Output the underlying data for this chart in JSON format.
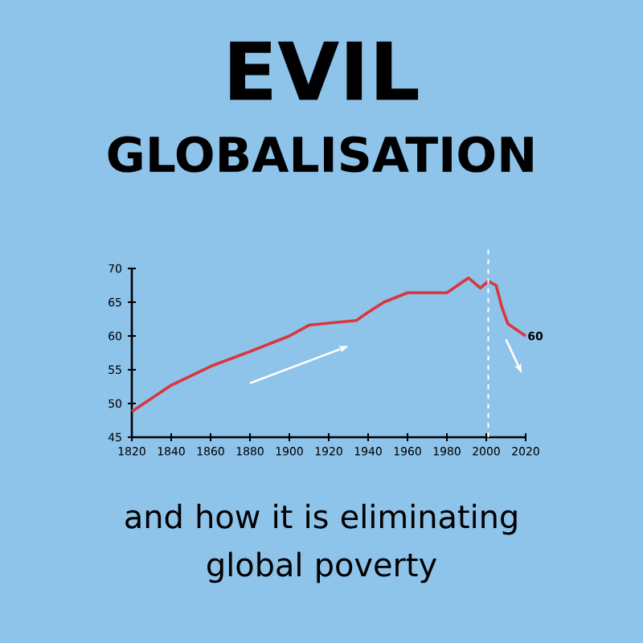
{
  "chart_data": {
    "type": "line",
    "title": "EVIL",
    "subtitle": "GLOBALISATION",
    "annotations": [
      {
        "text": "60",
        "x": 2020,
        "y": 60
      },
      "and how it is eliminating global poverty"
    ],
    "x": [
      1820,
      1840,
      1860,
      1880,
      1900,
      1910,
      1920,
      1934,
      1940,
      1948,
      1960,
      1980,
      1991,
      1997,
      2001,
      2005,
      2008,
      2011,
      2020
    ],
    "series": [
      {
        "color": "#d9363e",
        "values": [
          48.8,
          52.7,
          55.5,
          57.7,
          60,
          61.6,
          61.9,
          62.3,
          63.5,
          65,
          66.4,
          66.4,
          68.6,
          67.1,
          68.1,
          67.5,
          64.2,
          61.8,
          60
        ]
      }
    ],
    "xlim": [
      1820,
      2020
    ],
    "ylim": [
      45,
      70
    ],
    "xticks": [
      1820,
      1840,
      1860,
      1880,
      1900,
      1920,
      1940,
      1960,
      1980,
      2000,
      2020
    ],
    "yticks": [
      45,
      50,
      55,
      60,
      65,
      70
    ],
    "ref_lines": [
      {
        "axis": "x",
        "value": 2001,
        "color": "#ffffff",
        "line_style": "dashed"
      }
    ],
    "grid": false,
    "marker": "none",
    "line_style": "solid"
  }
}
